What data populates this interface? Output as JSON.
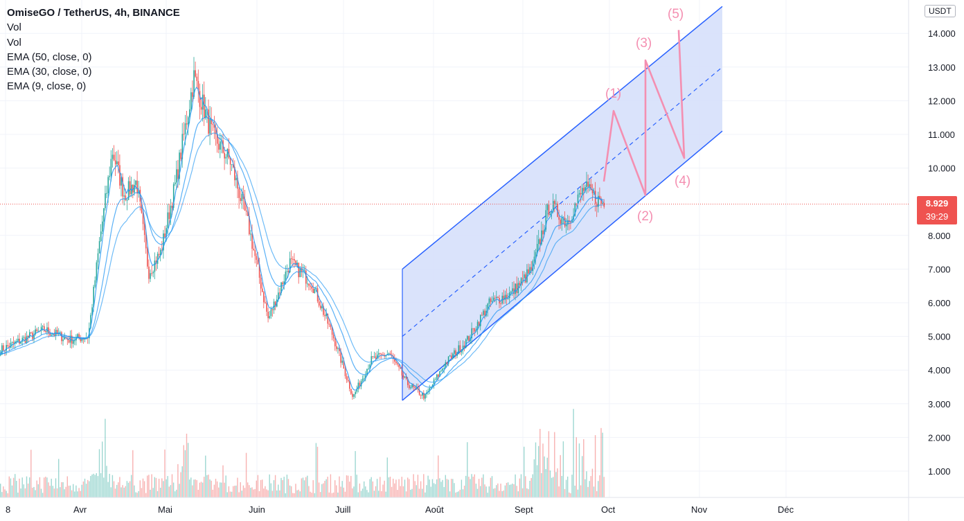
{
  "header": {
    "symbol_line": "OmiseGO / TetherUS, 4h, BINANCE",
    "indicators": [
      "Vol",
      "Vol",
      "EMA (50, close, 0)",
      "EMA (30, close, 0)",
      "EMA (9, close, 0)"
    ]
  },
  "currency_badge": "USDT",
  "last_price": {
    "value": "8.929",
    "countdown": "39:29",
    "color": "#ef5350"
  },
  "colors": {
    "up": "#26a69a",
    "down": "#ef5350",
    "ema": "#2196f3",
    "channel_line": "#2962ff",
    "channel_fill": "#d6e0fb",
    "wave": "#f48fb1"
  },
  "chart_data": {
    "type": "candlestick",
    "x_tick_labels": [
      "8",
      "Avr",
      "Mai",
      "Juin",
      "Juill",
      "Août",
      "Sept",
      "Oct",
      "Nov",
      "Déc"
    ],
    "y_tick_labels": [
      "1.000",
      "2.000",
      "3.000",
      "4.000",
      "5.000",
      "6.000",
      "7.000",
      "8.000",
      "10.000",
      "11.000",
      "12.000",
      "13.000",
      "14.000"
    ],
    "ylim": [
      0.3,
      14.8
    ],
    "scale": "linear",
    "price_path": [
      [
        "8",
        4.6
      ],
      [
        "8",
        5.2
      ],
      [
        "8",
        4.9
      ],
      [
        "Avr",
        5.0
      ],
      [
        "Avr",
        8.0
      ],
      [
        "Avr",
        10.5
      ],
      [
        "Avr",
        9.2
      ],
      [
        "Avr",
        9.6
      ],
      [
        "Avr",
        6.9
      ],
      [
        "Avr",
        7.5
      ],
      [
        "Mai",
        9.6
      ],
      [
        "Mai",
        12.7
      ],
      [
        "Mai",
        11.0
      ],
      [
        "Mai",
        10.2
      ],
      [
        "Mai",
        8.3
      ],
      [
        "Juin",
        5.5
      ],
      [
        "Juin",
        7.2
      ],
      [
        "Juin",
        6.6
      ],
      [
        "Juin",
        5.0
      ],
      [
        "Juill",
        3.2
      ],
      [
        "Juill",
        4.3
      ],
      [
        "Juill",
        4.5
      ],
      [
        "Juill",
        3.6
      ],
      [
        "Juill",
        3.2
      ],
      [
        "Août",
        4.2
      ],
      [
        "Août",
        4.9
      ],
      [
        "Août",
        6.0
      ],
      [
        "Août",
        6.3
      ],
      [
        "Sept",
        7.0
      ],
      [
        "Sept",
        8.9
      ],
      [
        "Sept",
        8.4
      ],
      [
        "Sept",
        9.4
      ],
      [
        "Sept",
        8.9
      ]
    ],
    "ema": {
      "periods": [
        9,
        30,
        50
      ]
    },
    "volume": {
      "tallest_spike_months": [
        "Avr",
        "Mai",
        "Sept"
      ]
    },
    "channel": {
      "upper": [
        [
          "Juill",
          7.0
        ],
        [
          "Nov",
          14.8
        ]
      ],
      "lower": [
        [
          "Juill",
          3.1
        ],
        [
          "Nov",
          11.1
        ]
      ],
      "mid": [
        [
          "Juill",
          5.0
        ],
        [
          "Nov",
          13.0
        ]
      ]
    },
    "projection": {
      "path": [
        9.6,
        11.7,
        9.2,
        13.2,
        10.3,
        14.1
      ],
      "wave_labels": [
        "(1)",
        "(2)",
        "(3)",
        "(4)",
        "(5)"
      ]
    }
  }
}
